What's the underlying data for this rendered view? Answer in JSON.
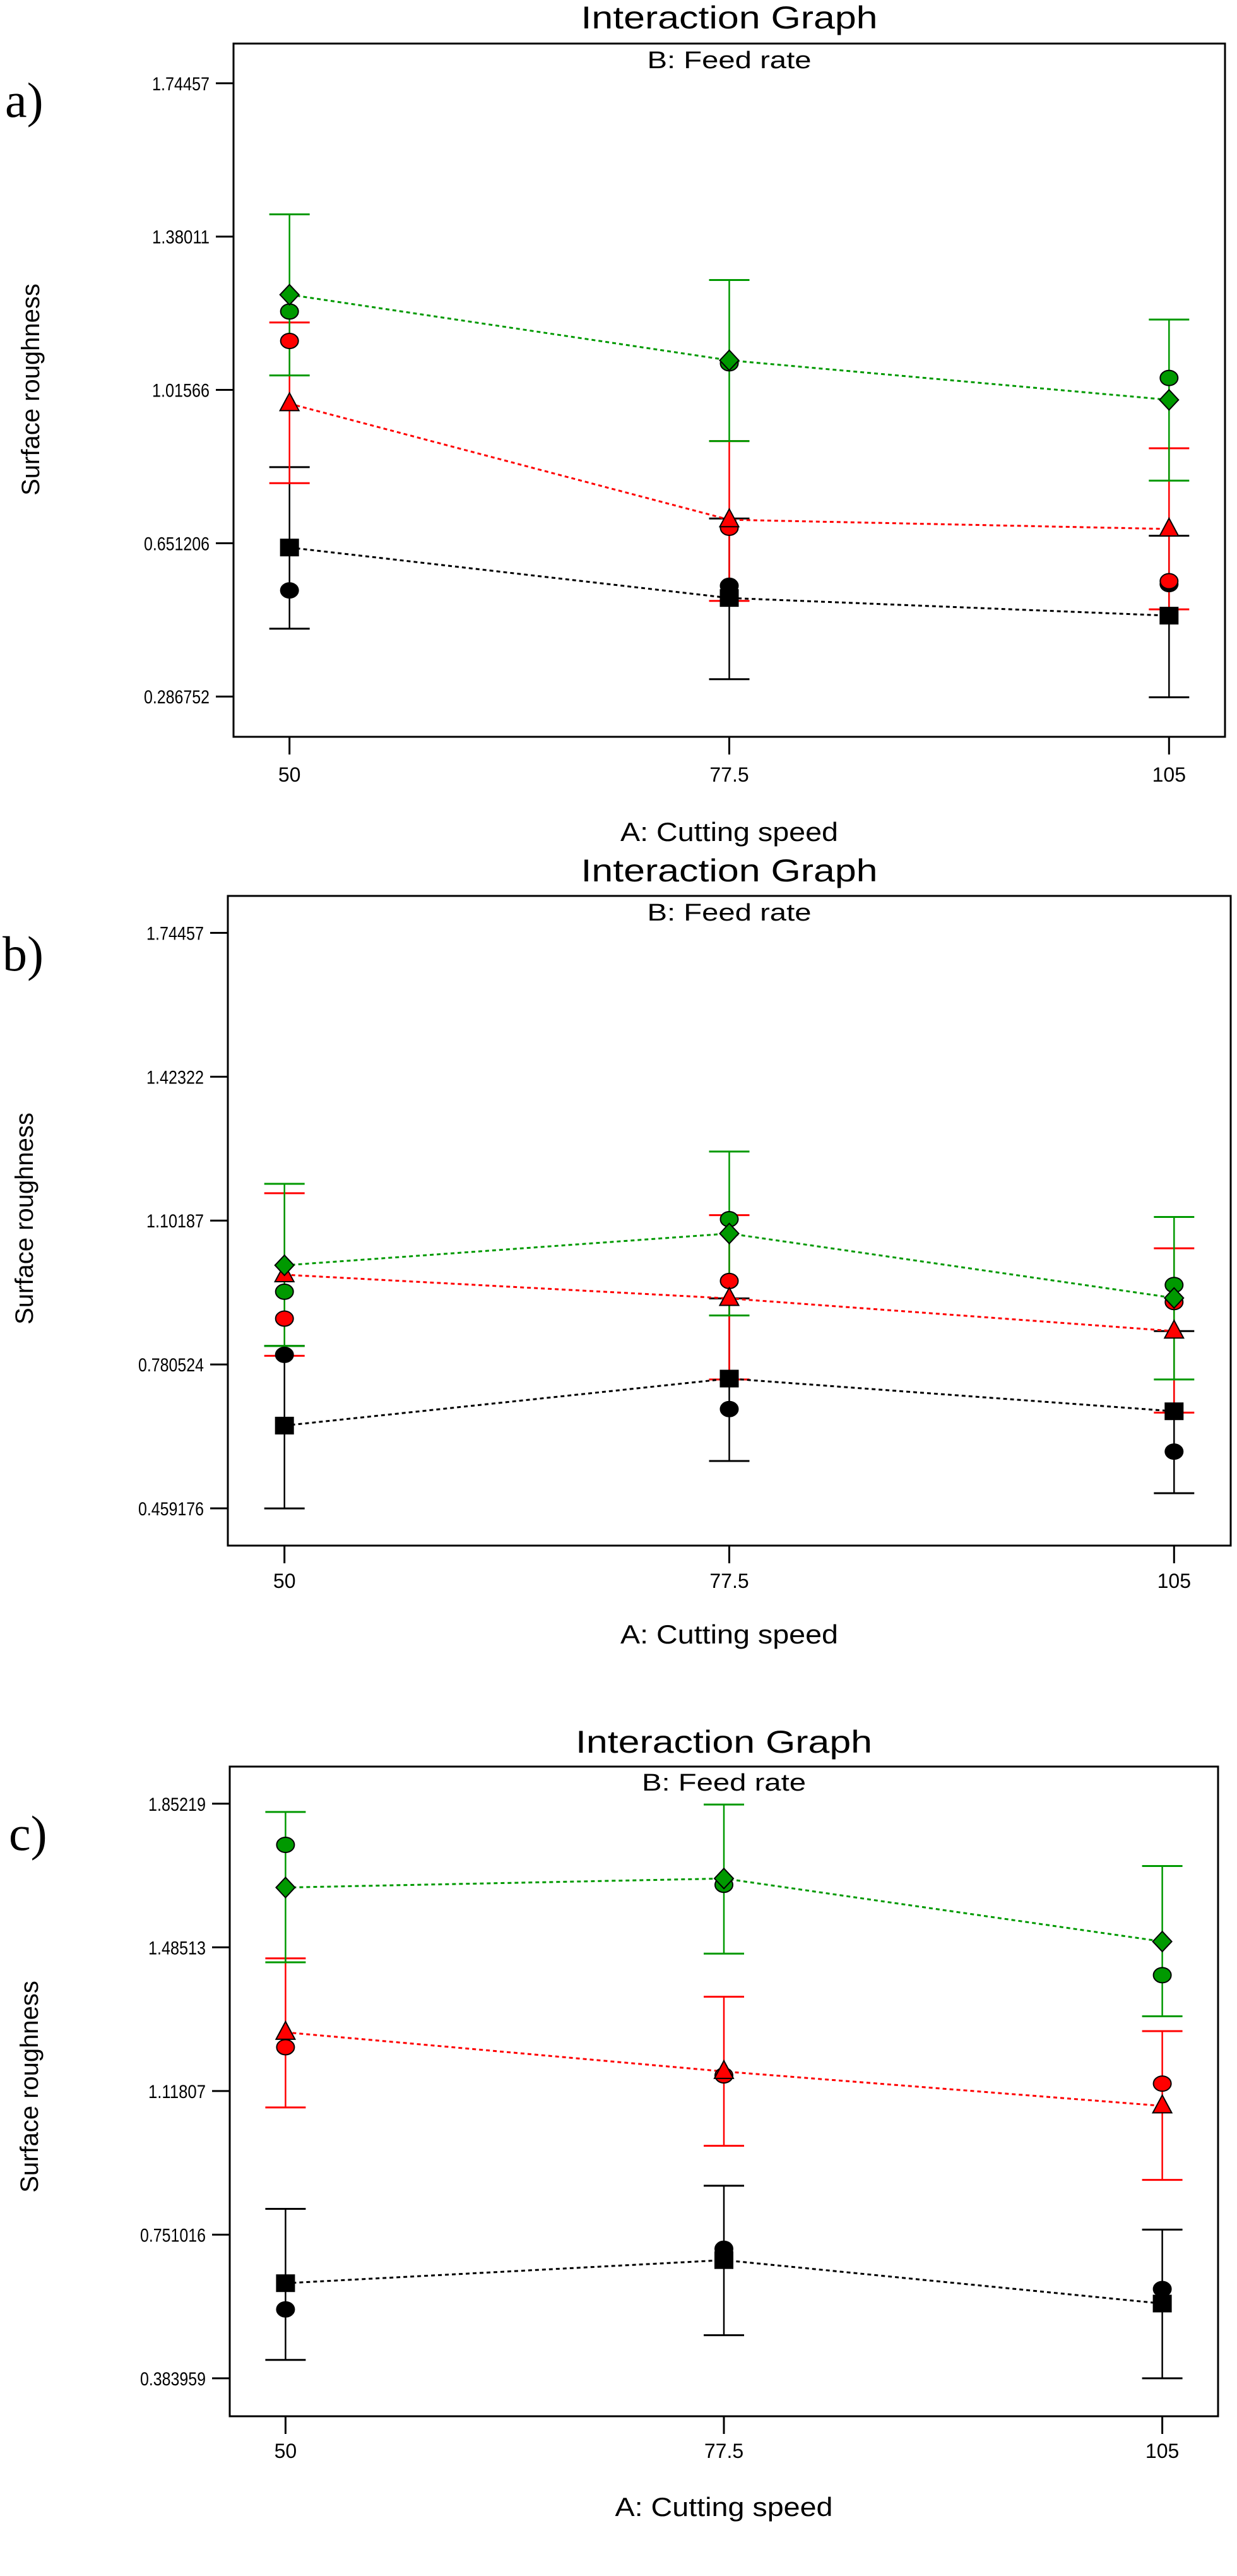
{
  "chart_data": [
    {
      "panel_label": "a)",
      "type": "line",
      "title": "Interaction Graph",
      "subtitle": "B: Feed rate",
      "xlabel": "A: Cutting speed",
      "ylabel": "Surface roughness",
      "categories": [
        "50",
        "77.5",
        "105"
      ],
      "x": [
        50,
        77.5,
        105
      ],
      "xlim": [
        46.5,
        108.5
      ],
      "ylim": [
        0.191,
        1.839
      ],
      "yticks": [
        0.286752,
        0.651206,
        1.01566,
        1.38011,
        1.74457
      ],
      "ytick_labels": [
        "0.286752",
        "0.651206",
        "1.01566",
        "1.38011",
        "1.74457"
      ],
      "grid": false,
      "series": [
        {
          "color": "#000000",
          "marker": "square",
          "values": [
            0.641,
            0.521,
            0.479
          ],
          "err_low": [
            0.448,
            0.328,
            0.285
          ],
          "err_high": [
            0.832,
            0.71,
            0.669
          ]
        },
        {
          "color": "#ff0000",
          "marker": "triangle",
          "values": [
            0.983,
            0.707,
            0.685
          ],
          "err_low": [
            0.794,
            0.514,
            0.494
          ],
          "err_high": [
            1.176,
            0.894,
            0.877
          ]
        },
        {
          "color": "#009900",
          "marker": "diamond",
          "values": [
            1.242,
            1.086,
            0.992
          ],
          "err_low": [
            1.05,
            0.894,
            0.8
          ],
          "err_high": [
            1.433,
            1.277,
            1.183
          ]
        }
      ],
      "design_points": [
        {
          "color": "#000000",
          "values": [
            0.539,
            0.55,
            0.554
          ]
        },
        {
          "color": "#ff0000",
          "values": [
            1.132,
            0.688,
            0.561
          ]
        },
        {
          "color": "#009900",
          "values": [
            1.202,
            1.079,
            1.044
          ]
        }
      ]
    },
    {
      "panel_label": "b)",
      "type": "line",
      "title": "Interaction Graph",
      "subtitle": "B: Feed rate",
      "xlabel": "A: Cutting speed",
      "ylabel": "Surface roughness",
      "categories": [
        "50",
        "77.5",
        "105"
      ],
      "x": [
        50,
        77.5,
        105
      ],
      "xlim": [
        46.5,
        108.5
      ],
      "ylim": [
        0.376,
        1.827
      ],
      "yticks": [
        0.459176,
        0.780524,
        1.10187,
        1.42322,
        1.74457
      ],
      "ytick_labels": [
        "0.459176",
        "0.780524",
        "1.10187",
        "1.42322",
        "1.74457"
      ],
      "grid": false,
      "series": [
        {
          "color": "#000000",
          "marker": "square",
          "values": [
            0.644,
            0.749,
            0.676
          ],
          "err_low": [
            0.459,
            0.565,
            0.493
          ],
          "err_high": [
            0.822,
            0.928,
            0.855
          ]
        },
        {
          "color": "#ff0000",
          "marker": "triangle",
          "values": [
            0.981,
            0.928,
            0.855
          ],
          "err_low": [
            0.8,
            0.747,
            0.673
          ],
          "err_high": [
            1.163,
            1.114,
            1.04
          ]
        },
        {
          "color": "#009900",
          "marker": "diamond",
          "values": [
            1.002,
            1.073,
            0.929
          ],
          "err_low": [
            0.822,
            0.89,
            0.747
          ],
          "err_high": [
            1.184,
            1.256,
            1.11
          ]
        }
      ],
      "design_points": [
        {
          "color": "#000000",
          "values": [
            0.802,
            0.681,
            0.586
          ]
        },
        {
          "color": "#ff0000",
          "values": [
            0.883,
            0.967,
            0.92
          ]
        },
        {
          "color": "#009900",
          "values": [
            0.943,
            1.105,
            0.958
          ]
        }
      ]
    },
    {
      "panel_label": "c)",
      "type": "line",
      "title": "Interaction Graph",
      "subtitle": "B: Feed rate",
      "xlabel": "A: Cutting speed",
      "ylabel": "Surface roughness",
      "categories": [
        "50",
        "77.5",
        "105"
      ],
      "x": [
        50,
        77.5,
        105
      ],
      "xlim": [
        46.5,
        108.5
      ],
      "ylim": [
        0.287,
        1.947
      ],
      "yticks": [
        0.383959,
        0.751016,
        1.11807,
        1.48513,
        1.85219
      ],
      "ytick_labels": [
        "0.383959",
        "0.751016",
        "1.11807",
        "1.48513",
        "1.85219"
      ],
      "grid": false,
      "series": [
        {
          "color": "#000000",
          "marker": "square",
          "values": [
            0.627,
            0.686,
            0.575
          ],
          "err_low": [
            0.431,
            0.494,
            0.384
          ],
          "err_high": [
            0.817,
            0.876,
            0.764
          ]
        },
        {
          "color": "#ff0000",
          "marker": "triangle",
          "values": [
            1.268,
            1.168,
            1.08
          ],
          "err_low": [
            1.076,
            0.978,
            0.891
          ],
          "err_high": [
            1.457,
            1.359,
            1.271
          ]
        },
        {
          "color": "#009900",
          "marker": "diamond",
          "values": [
            1.638,
            1.661,
            1.5
          ],
          "err_low": [
            1.447,
            1.469,
            1.309
          ],
          "err_high": [
            1.831,
            1.85,
            1.693
          ]
        }
      ],
      "design_points": [
        {
          "color": "#000000",
          "values": [
            0.56,
            0.715,
            0.612
          ]
        },
        {
          "color": "#ff0000",
          "values": [
            1.23,
            1.158,
            1.137
          ]
        },
        {
          "color": "#009900",
          "values": [
            1.747,
            1.645,
            1.414
          ]
        }
      ]
    }
  ]
}
